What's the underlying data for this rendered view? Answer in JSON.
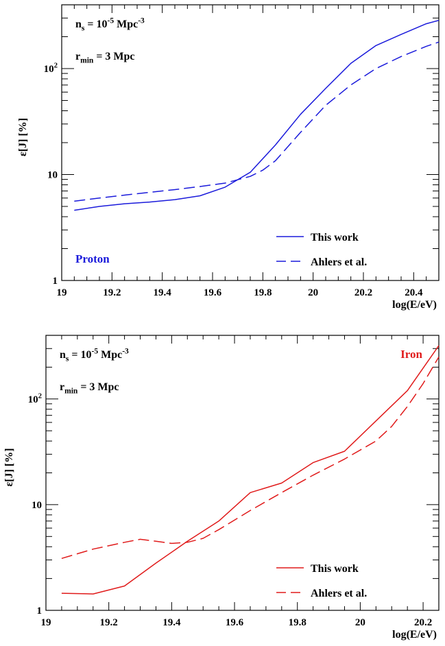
{
  "chart_data": [
    {
      "type": "line",
      "xlabel": "log(E/eV)",
      "ylabel": "ε[J]  [%]",
      "xlim": [
        19,
        20.5
      ],
      "ylim": [
        1,
        400
      ],
      "ylog": true,
      "x_ticks": [
        "19",
        "19.2",
        "19.4",
        "19.6",
        "19.8",
        "20",
        "20.2",
        "20.4"
      ],
      "y_ticks": [
        "1",
        "10",
        "10^2"
      ],
      "annotations": {
        "ns": "n_s = 10^-5 Mpc^-3",
        "rmin": "r_min = 3 Mpc",
        "label": "Proton"
      },
      "legend_position": "bottom-right",
      "series": [
        {
          "name": "This work",
          "style": "solid",
          "color": "#1a1adb",
          "x": [
            19.05,
            19.15,
            19.25,
            19.35,
            19.45,
            19.55,
            19.65,
            19.75,
            19.85,
            19.95,
            20.05,
            20.15,
            20.25,
            20.35,
            20.45,
            20.5
          ],
          "y": [
            4.6,
            5.0,
            5.3,
            5.5,
            5.8,
            6.3,
            7.6,
            10.5,
            19,
            37,
            65,
            112,
            165,
            210,
            265,
            285
          ]
        },
        {
          "name": "Ahlers et al.",
          "style": "dashed",
          "color": "#1a1adb",
          "x": [
            19.05,
            19.15,
            19.25,
            19.35,
            19.45,
            19.55,
            19.65,
            19.75,
            19.8,
            19.85,
            19.95,
            20.05,
            20.15,
            20.25,
            20.35,
            20.45,
            20.5
          ],
          "y": [
            5.6,
            6.0,
            6.4,
            6.8,
            7.2,
            7.7,
            8.3,
            9.6,
            11,
            13.5,
            25,
            45,
            70,
            100,
            130,
            162,
            178
          ]
        }
      ]
    },
    {
      "type": "line",
      "xlabel": "log(E/eV)",
      "ylabel": "ε[J]  [%]",
      "xlim": [
        19,
        20.25
      ],
      "ylim": [
        1,
        400
      ],
      "ylog": true,
      "x_ticks": [
        "19",
        "19.2",
        "19.4",
        "19.6",
        "19.8",
        "20",
        "20.2"
      ],
      "y_ticks": [
        "1",
        "10",
        "10^2"
      ],
      "annotations": {
        "ns": "n_s = 10^-5 Mpc^-3",
        "rmin": "r_min = 3 Mpc",
        "label": "Iron"
      },
      "legend_position": "bottom-right",
      "series": [
        {
          "name": "This work",
          "style": "solid",
          "color": "#e01a1a",
          "x": [
            19.05,
            19.15,
            19.25,
            19.35,
            19.45,
            19.55,
            19.65,
            19.75,
            19.85,
            19.95,
            20.05,
            20.15,
            20.25
          ],
          "y": [
            1.45,
            1.43,
            1.7,
            2.8,
            4.5,
            7.0,
            13,
            16,
            25,
            32,
            62,
            120,
            320
          ]
        },
        {
          "name": "Ahlers et al.",
          "style": "dashed",
          "color": "#e01a1a",
          "x": [
            19.05,
            19.15,
            19.25,
            19.3,
            19.35,
            19.4,
            19.45,
            19.5,
            19.55,
            19.65,
            19.75,
            19.85,
            19.95,
            20.05,
            20.1,
            20.15,
            20.2,
            20.25
          ],
          "y": [
            3.1,
            3.8,
            4.4,
            4.7,
            4.5,
            4.3,
            4.4,
            4.8,
            5.8,
            8.8,
            13,
            19,
            27,
            40,
            55,
            85,
            140,
            250
          ]
        }
      ]
    }
  ]
}
